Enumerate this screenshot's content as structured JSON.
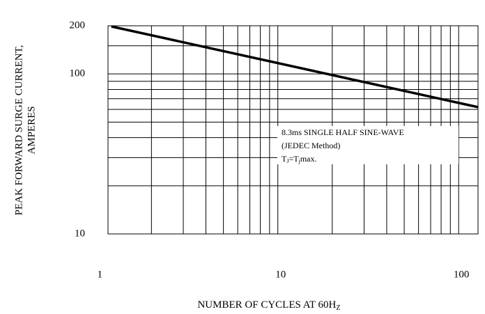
{
  "chart_data": {
    "type": "line",
    "x_label": {
      "text": "NUMBER OF CYCLES AT 60H",
      "sub": "Z"
    },
    "y_label": [
      "PEAK FORWARD SURGE CURRENT,",
      "AMPERES"
    ],
    "annotation": {
      "line1": "8.3ms SINGLE HALF SINE-WAVE",
      "line2": "(JEDEC Method)",
      "line3": [
        "T",
        "J",
        "=T",
        "j",
        "max."
      ]
    },
    "x": [
      1.2,
      128
    ],
    "series": [
      {
        "color": "#000000",
        "values": [
          198,
          62
        ]
      }
    ],
    "xlim": [
      1.15,
      128
    ],
    "ylim": [
      10,
      200
    ],
    "xticks": [
      1,
      10,
      100
    ],
    "yticks": [
      10,
      100,
      200
    ],
    "x_grid": [
      2,
      3,
      4,
      5,
      6,
      7,
      8,
      9,
      10,
      20,
      30,
      40,
      50,
      60,
      70,
      80,
      90,
      100
    ],
    "y_grid": [
      20,
      30,
      40,
      50,
      60,
      70,
      80,
      90,
      100,
      150
    ],
    "log_x": true,
    "log_y": true,
    "grid": true
  }
}
